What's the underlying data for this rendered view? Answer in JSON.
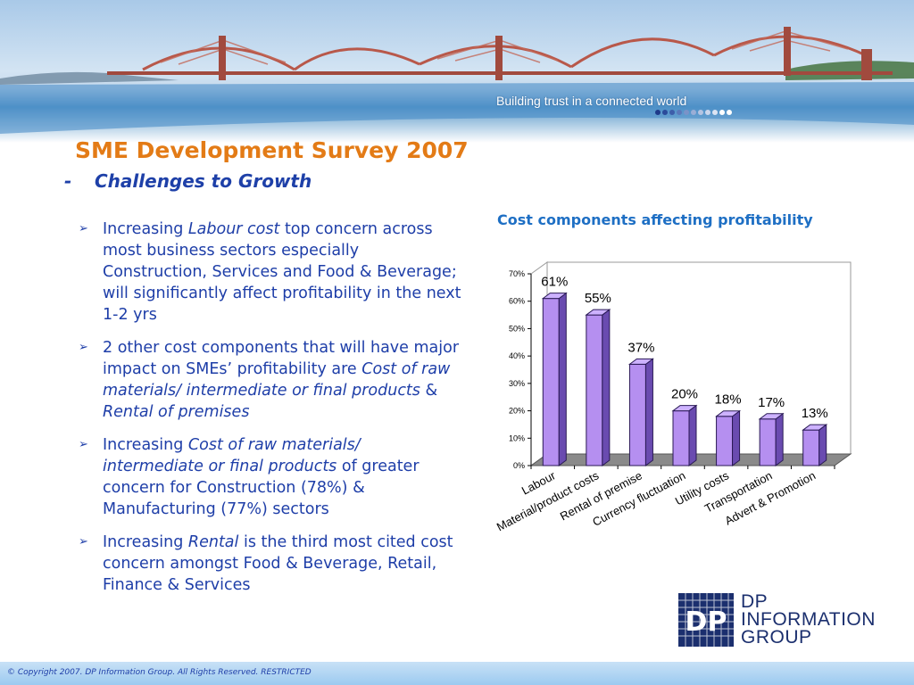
{
  "banner": {
    "tagline": "Building trust in a connected world"
  },
  "title": "SME Development Survey 2007",
  "subtitle": {
    "dash": "-",
    "text": "Challenges to Growth"
  },
  "bullets": [
    {
      "parts": [
        {
          "text": "Increasing "
        },
        {
          "text": "Labour cost",
          "italic": true
        },
        {
          "text": " top concern across most business sectors especially Construction, Services and Food & Beverage; will significantly affect profitability in the next 1-2 yrs"
        }
      ]
    },
    {
      "parts": [
        {
          "text": "2 other cost components that will have major impact on SMEs’ profitability are "
        },
        {
          "text": "Cost of raw materials/ intermediate or final products",
          "italic": true
        },
        {
          "text": " & "
        },
        {
          "text": "Rental of premises",
          "italic": true
        }
      ]
    },
    {
      "parts": [
        {
          "text": "Increasing "
        },
        {
          "text": "Cost of raw materials/ intermediate or final products",
          "italic": true
        },
        {
          "text": " of greater concern for Construction (78%) & Manufacturing (77%) sectors"
        }
      ]
    },
    {
      "parts": [
        {
          "text": "Increasing "
        },
        {
          "text": "Rental",
          "italic": true
        },
        {
          "text": " is the third most cited cost concern amongst Food & Beverage, Retail, Finance & Services"
        }
      ]
    }
  ],
  "chart_data": {
    "type": "bar",
    "title": "Cost components affecting profitability",
    "categories": [
      "Labour",
      "Material/product costs",
      "Rental of premise",
      "Currency fluctuation",
      "Utility costs",
      "Transportation",
      "Advert & Promotion"
    ],
    "values": [
      61,
      55,
      37,
      20,
      18,
      17,
      13
    ],
    "data_labels": [
      "61%",
      "55%",
      "37%",
      "20%",
      "18%",
      "17%",
      "13%"
    ],
    "y_ticks": [
      "0%",
      "10%",
      "20%",
      "30%",
      "40%",
      "50%",
      "60%",
      "70%"
    ],
    "ylim": [
      0,
      70
    ],
    "xlabel": "",
    "ylabel": "",
    "bar_color": "#b58ff0",
    "grid": false,
    "legend": "none"
  },
  "logo": {
    "mark": "DP",
    "lines": [
      "DP",
      "INFORMATION",
      "GROUP"
    ]
  },
  "footer": "© Copyright 2007. DP Information Group. All Rights Reserved. RESTRICTED"
}
